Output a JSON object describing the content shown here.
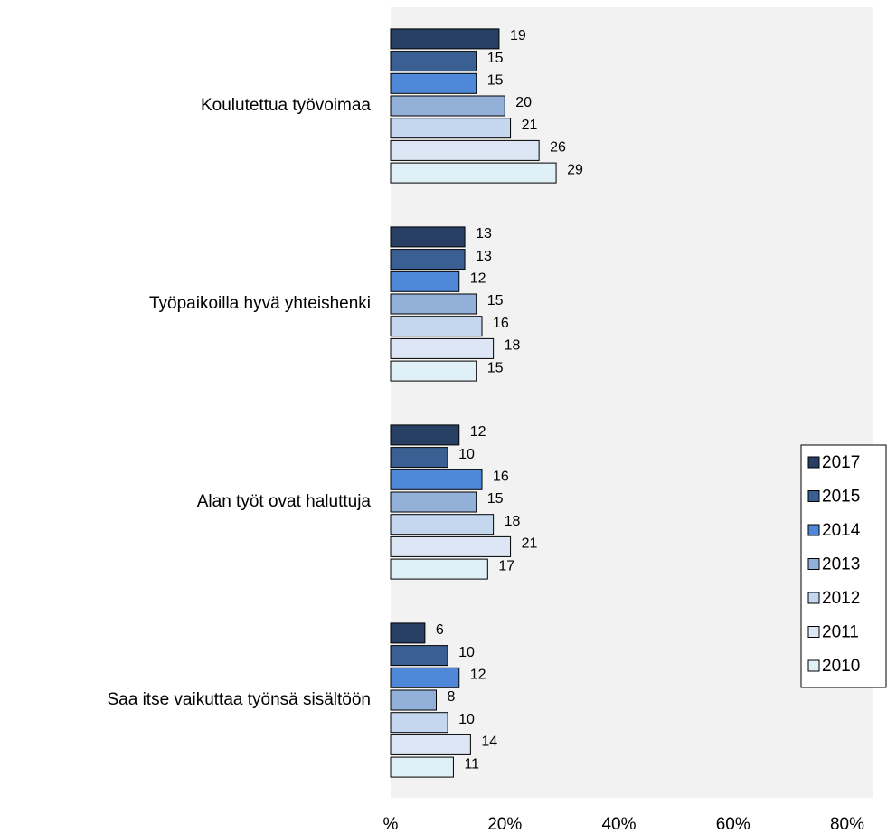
{
  "chart_data": {
    "type": "hbar",
    "categories": [
      "Koulutettua työvoimaa",
      "Työpaikoilla hyvä yhteishenki",
      "Alan työt ovat haluttuja",
      "Saa itse vaikuttaa työnsä sisältöön"
    ],
    "series": [
      {
        "name": "2017",
        "color": "#263f63",
        "values": [
          19,
          13,
          12,
          6
        ]
      },
      {
        "name": "2015",
        "color": "#3a5f93",
        "values": [
          15,
          13,
          10,
          10
        ]
      },
      {
        "name": "2014",
        "color": "#4f88d8",
        "values": [
          15,
          12,
          16,
          12
        ]
      },
      {
        "name": "2013",
        "color": "#93b0d8",
        "values": [
          20,
          15,
          15,
          8
        ]
      },
      {
        "name": "2012",
        "color": "#c5d6ef",
        "values": [
          21,
          16,
          18,
          10
        ]
      },
      {
        "name": "2011",
        "color": "#dce6f4",
        "values": [
          26,
          18,
          21,
          14
        ]
      },
      {
        "name": "2010",
        "color": "#dff0f6",
        "values": [
          29,
          15,
          17,
          11
        ]
      }
    ],
    "xlim": [
      0,
      80
    ],
    "xticks": [
      {
        "value": 0,
        "label": "%"
      },
      {
        "value": 20,
        "label": "20%"
      },
      {
        "value": 40,
        "label": "40%"
      },
      {
        "value": 60,
        "label": "60%"
      },
      {
        "value": 80,
        "label": "80%"
      }
    ],
    "grid": false,
    "legend": "right"
  }
}
